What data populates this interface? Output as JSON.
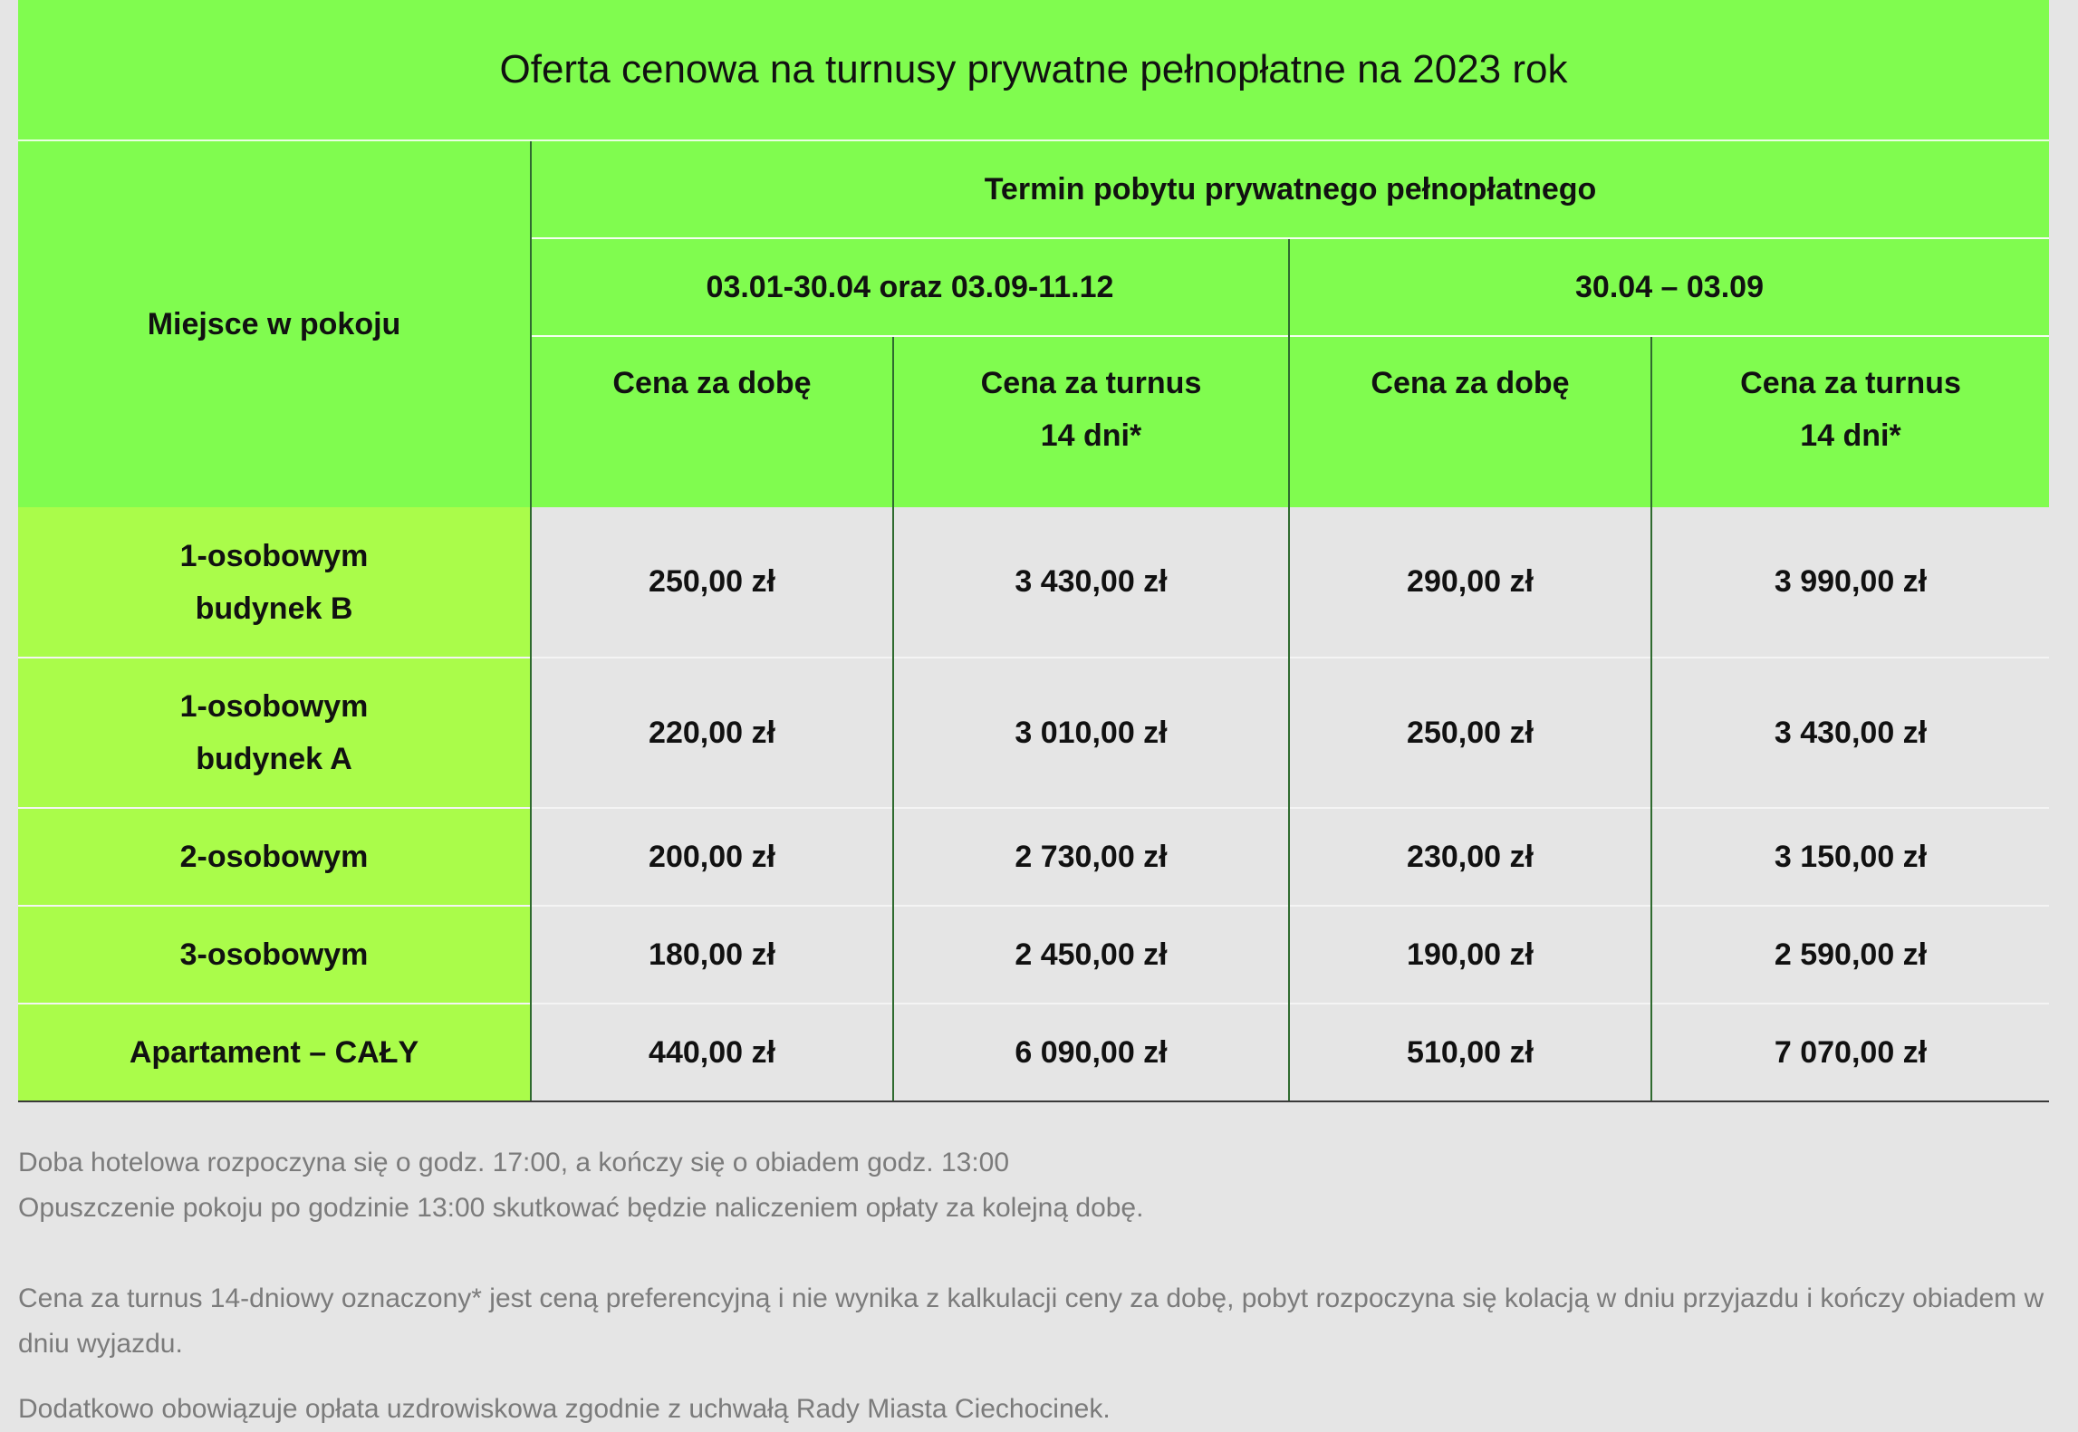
{
  "title": "Oferta cenowa na turnusy prywatne pełnopłatne na 2023 rok",
  "header": {
    "place_label": "Miejsce w pokoju",
    "stay_label": "Termin pobytu prywatnego pełnopłatnego",
    "period1": "03.01-30.04 oraz 03.09-11.12",
    "period2": "30.04 – 03.09",
    "col_day": "Cena za dobę",
    "col_turnus_line1": "Cena za turnus",
    "col_turnus_line2": "14 dni*"
  },
  "rows": [
    {
      "label1": "1-osobowym",
      "label2": "budynek B",
      "p1_day": "250,00 zł",
      "p1_turnus": "3 430,00 zł",
      "p2_day": "290,00 zł",
      "p2_turnus": "3 990,00 zł"
    },
    {
      "label1": "1-osobowym",
      "label2": "budynek A",
      "p1_day": "220,00 zł",
      "p1_turnus": "3 010,00 zł",
      "p2_day": "250,00 zł",
      "p2_turnus": "3 430,00 zł"
    },
    {
      "label1": "2-osobowym",
      "label2": "",
      "p1_day": "200,00 zł",
      "p1_turnus": "2 730,00 zł",
      "p2_day": "230,00 zł",
      "p2_turnus": "3 150,00 zł"
    },
    {
      "label1": "3-osobowym",
      "label2": "",
      "p1_day": "180,00 zł",
      "p1_turnus": "2 450,00 zł",
      "p2_day": "190,00 zł",
      "p2_turnus": "2 590,00 zł"
    },
    {
      "label1": "Apartament – CAŁY",
      "label2": "",
      "p1_day": "440,00 zł",
      "p1_turnus": "6 090,00 zł",
      "p2_day": "510,00 zł",
      "p2_turnus": "7 070,00 zł"
    }
  ],
  "notes": {
    "line1": "Doba hotelowa rozpoczyna się o godz. 17:00, a kończy się o obiadem godz. 13:00",
    "line2": "Opuszczenie pokoju po godzinie 13:00 skutkować będzie naliczeniem opłaty za kolejną dobę.",
    "line3": "Cena za turnus 14-dniowy oznaczony* jest ceną preferencyjną i nie wynika z kalkulacji ceny za dobę, pobyt rozpoczyna się kolacją w dniu przyjazdu i kończy obiadem w dniu wyjazdu.",
    "line4": "Dodatkowo obowiązuje opłata uzdrowiskowa zgodnie z uchwałą Rady Miasta Ciechocinek."
  },
  "colors": {
    "header_green": "#80fc4f",
    "label_green": "#aafc4a",
    "background": "#e5e5e5",
    "note_text": "#7b7b7b"
  }
}
